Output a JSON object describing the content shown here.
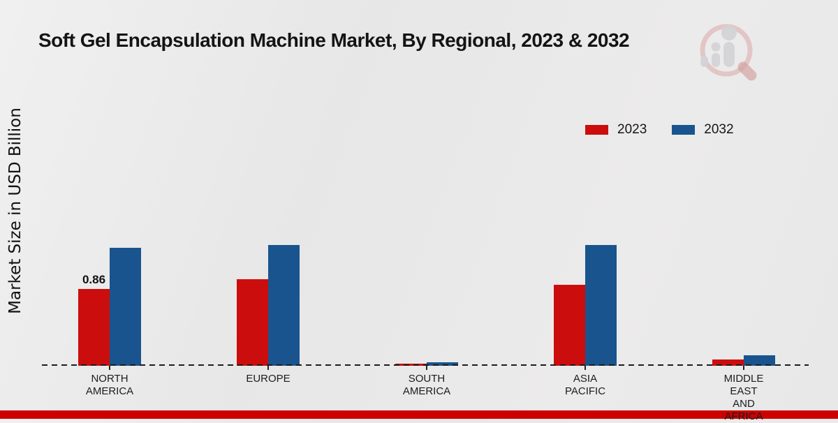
{
  "title": "Soft Gel Encapsulation Machine Market, By Regional, 2023 & 2032",
  "y_axis_label": "Market Size in USD Billion",
  "legend": {
    "items": [
      {
        "label": "2023",
        "color": "#cc0d0d"
      },
      {
        "label": "2032",
        "color": "#19548e"
      }
    ]
  },
  "footer": {
    "color": "#cc0000"
  },
  "logo": {
    "name": "market-research-watermark"
  },
  "chart_data": {
    "type": "bar",
    "title": "Soft Gel Encapsulation Machine Market, By Regional, 2023 & 2032",
    "xlabel": "",
    "ylabel": "Market Size in USD Billion",
    "categories": [
      "North America",
      "Europe",
      "South America",
      "Asia Pacific",
      "Middle East and Africa"
    ],
    "category_display": [
      "NORTH\nAMERICA",
      "EUROPE",
      "SOUTH\nAMERICA",
      "ASIA\nPACIFIC",
      "MIDDLE\nEAST\nAND\nAFRICA"
    ],
    "series": [
      {
        "name": "2023",
        "color": "#cc0d0d",
        "values": [
          0.86,
          0.97,
          0.02,
          0.91,
          0.07
        ]
      },
      {
        "name": "2032",
        "color": "#19548e",
        "values": [
          1.32,
          1.35,
          0.04,
          1.35,
          0.12
        ]
      }
    ],
    "value_labels": [
      {
        "series_index": 0,
        "category_index": 0,
        "text": "0.86"
      }
    ],
    "ylim": [
      0,
      1.6
    ],
    "grid": false,
    "baseline_style": "dashed",
    "legend_position": "upper-right"
  }
}
